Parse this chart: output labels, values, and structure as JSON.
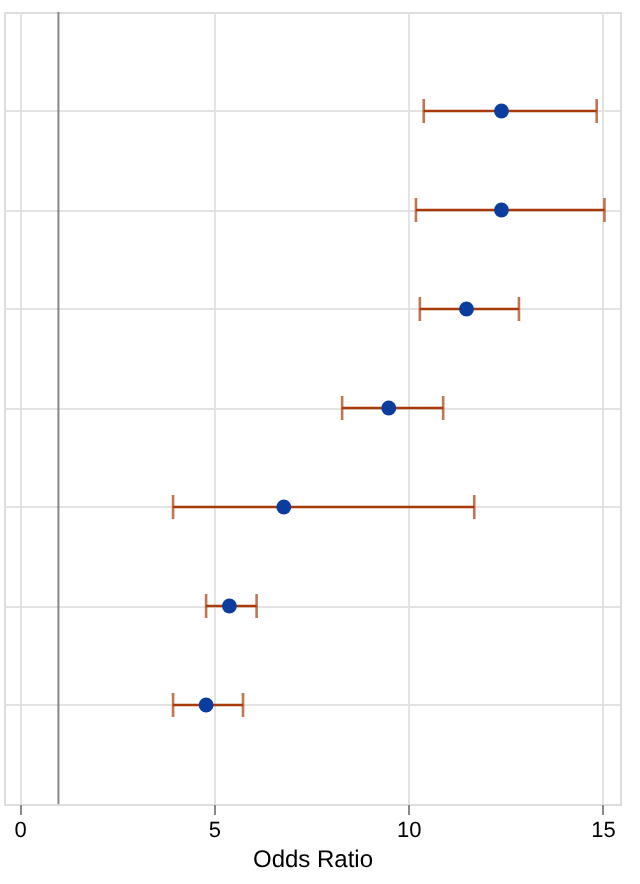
{
  "chart_data": {
    "type": "scatter",
    "orientation": "horizontal",
    "xlabel": "Odds Ratio",
    "categories": [
      null,
      null,
      null,
      null,
      null,
      null,
      null
    ],
    "series": [
      {
        "color": "#0a3d9e",
        "values": [
          12.4,
          12.4,
          11.5,
          9.5,
          6.8,
          5.4,
          4.8
        ],
        "errors": [
          [
            10.4,
            14.85
          ],
          [
            10.2,
            15.05
          ],
          [
            10.3,
            12.85
          ],
          [
            8.3,
            10.9
          ],
          [
            3.95,
            11.7
          ],
          [
            4.8,
            6.1
          ],
          [
            3.95,
            5.75
          ]
        ]
      }
    ],
    "xlim": [
      -0.4,
      15.45
    ],
    "xticks": [
      0,
      5,
      10,
      15
    ],
    "grid": true,
    "marker": "circle",
    "tick_labels": "x",
    "ref_lines": [
      {
        "axis": "x",
        "value": 1,
        "color": "#888888"
      }
    ]
  }
}
